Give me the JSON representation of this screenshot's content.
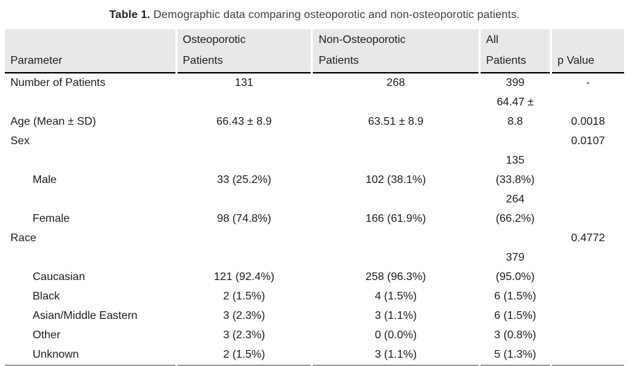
{
  "caption": {
    "label": "Table 1.",
    "text": "Demographic data comparing osteoporotic and non-osteoporotic patients."
  },
  "table": {
    "headers": [
      "Parameter",
      "Osteoporotic\nPatients",
      "Non-Osteoporotic\nPatients",
      "All\nPatients",
      "p Value"
    ],
    "rows": [
      {
        "parameter": "Number of Patients",
        "indent": false,
        "osteoporotic": "131",
        "non_osteoporotic": "268",
        "all": "399",
        "p_value": "-"
      },
      {
        "parameter": "Age (Mean ± SD)",
        "indent": false,
        "osteoporotic": "66.43 ± 8.9",
        "non_osteoporotic": "63.51 ± 8.9",
        "all": "64.47 ±\n8.8",
        "p_value": "0.0018"
      },
      {
        "parameter": "Sex",
        "indent": false,
        "osteoporotic": "",
        "non_osteoporotic": "",
        "all": "",
        "p_value": "0.0107"
      },
      {
        "parameter": "Male",
        "indent": true,
        "osteoporotic": "33 (25.2%)",
        "non_osteoporotic": "102 (38.1%)",
        "all": "135\n(33.8%)",
        "p_value": ""
      },
      {
        "parameter": "Female",
        "indent": true,
        "osteoporotic": "98 (74.8%)",
        "non_osteoporotic": "166 (61.9%)",
        "all": "264\n(66.2%)",
        "p_value": ""
      },
      {
        "parameter": "Race",
        "indent": false,
        "osteoporotic": "",
        "non_osteoporotic": "",
        "all": "",
        "p_value": "0.4772"
      },
      {
        "parameter": "Caucasian",
        "indent": true,
        "osteoporotic": "121 (92.4%)",
        "non_osteoporotic": "258 (96.3%)",
        "all": "379\n(95.0%)",
        "p_value": ""
      },
      {
        "parameter": "Black",
        "indent": true,
        "osteoporotic": "2 (1.5%)",
        "non_osteoporotic": "4 (1.5%)",
        "all": "6 (1.5%)",
        "p_value": ""
      },
      {
        "parameter": "Asian/Middle Eastern",
        "indent": true,
        "osteoporotic": "3 (2.3%)",
        "non_osteoporotic": "3 (1.1%)",
        "all": "6 (1.5%)",
        "p_value": ""
      },
      {
        "parameter": "Other",
        "indent": true,
        "osteoporotic": "3 (2.3%)",
        "non_osteoporotic": "0 (0.0%)",
        "all": "3 (0.8%)",
        "p_value": ""
      },
      {
        "parameter": "Unknown",
        "indent": true,
        "osteoporotic": "2 (1.5%)",
        "non_osteoporotic": "3 (1.1%)",
        "all": "5 (1.3%)",
        "p_value": ""
      }
    ]
  },
  "colors": {
    "header-bg": "#e8e8e8",
    "rule-dark": "#000000",
    "rule-bottom": "#9a9a9a",
    "text": "#1c1c1c",
    "caption-text": "#3d3d3d"
  }
}
